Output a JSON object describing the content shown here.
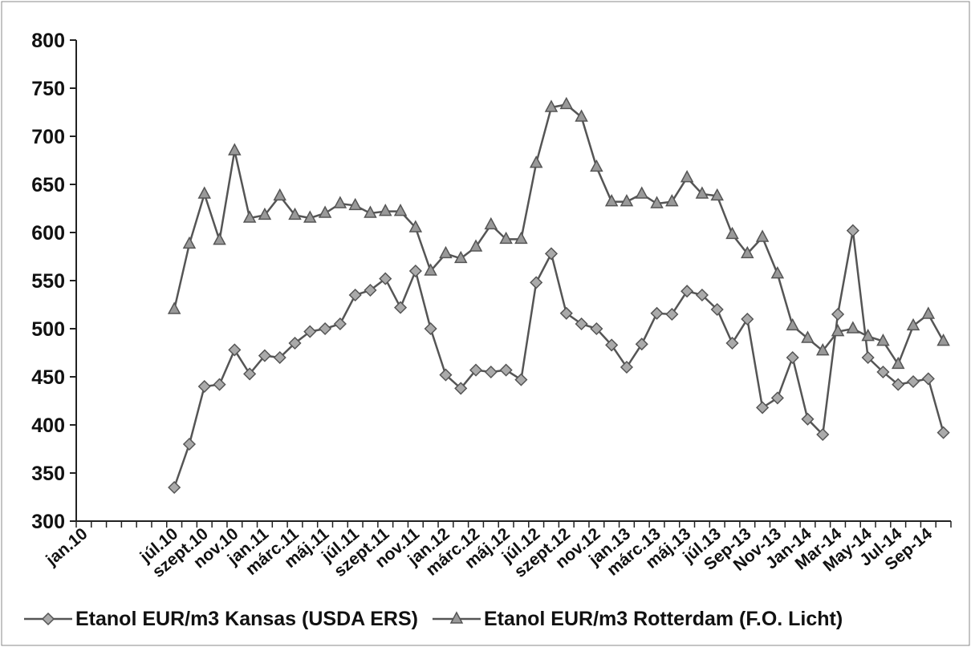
{
  "chart_data": {
    "type": "line",
    "categories": [
      "jan.10",
      null,
      null,
      null,
      null,
      null,
      "júl.10",
      null,
      "szept.10",
      null,
      "nov.10",
      null,
      "jan.11",
      null,
      "márc.11",
      null,
      "máj.11",
      null,
      "júl.11",
      null,
      "szept.11",
      null,
      "nov.11",
      null,
      "jan.12",
      null,
      "márc.12",
      null,
      "máj.12",
      null,
      "júl.12",
      null,
      "szept.12",
      null,
      "nov.12",
      null,
      "jan.13",
      null,
      "márc.13",
      null,
      "máj.13",
      null,
      "júl.13",
      null,
      "Sep-13",
      null,
      "Nov-13",
      null,
      "Jan-14",
      null,
      "Mar-14",
      null,
      "May-14",
      null,
      "Jul-14",
      null,
      "Sep-14",
      null
    ],
    "series": [
      {
        "name": "Etanol EUR/m3 Kansas (USDA ERS)",
        "color": "#555555",
        "marker": "diamond",
        "values": [
          null,
          null,
          null,
          null,
          null,
          null,
          335,
          380,
          440,
          442,
          478,
          453,
          472,
          470,
          485,
          497,
          500,
          505,
          535,
          540,
          552,
          522,
          560,
          500,
          452,
          438,
          457,
          455,
          457,
          447,
          548,
          578,
          516,
          505,
          500,
          483,
          460,
          484,
          516,
          515,
          539,
          535,
          520,
          485,
          510,
          418,
          428,
          470,
          406,
          390,
          515,
          602,
          470,
          455,
          442,
          445,
          448,
          392
        ]
      },
      {
        "name": "Etanol EUR/m3 Rotterdam (F.O. Licht)",
        "color": "#555555",
        "marker": "triangle",
        "values": [
          null,
          null,
          null,
          null,
          null,
          null,
          520,
          588,
          640,
          592,
          685,
          615,
          618,
          638,
          618,
          615,
          620,
          630,
          628,
          620,
          622,
          622,
          605,
          560,
          578,
          573,
          585,
          608,
          593,
          593,
          672,
          730,
          733,
          720,
          668,
          632,
          632,
          640,
          630,
          632,
          657,
          640,
          638,
          598,
          578,
          595,
          557,
          503,
          490,
          477,
          497,
          500,
          492,
          487,
          463,
          503,
          515,
          487
        ]
      }
    ],
    "ylim": [
      300,
      800
    ],
    "yticks": [
      300,
      350,
      400,
      450,
      500,
      550,
      600,
      650,
      700,
      750,
      800
    ],
    "grid": false,
    "legend": "bottom"
  }
}
